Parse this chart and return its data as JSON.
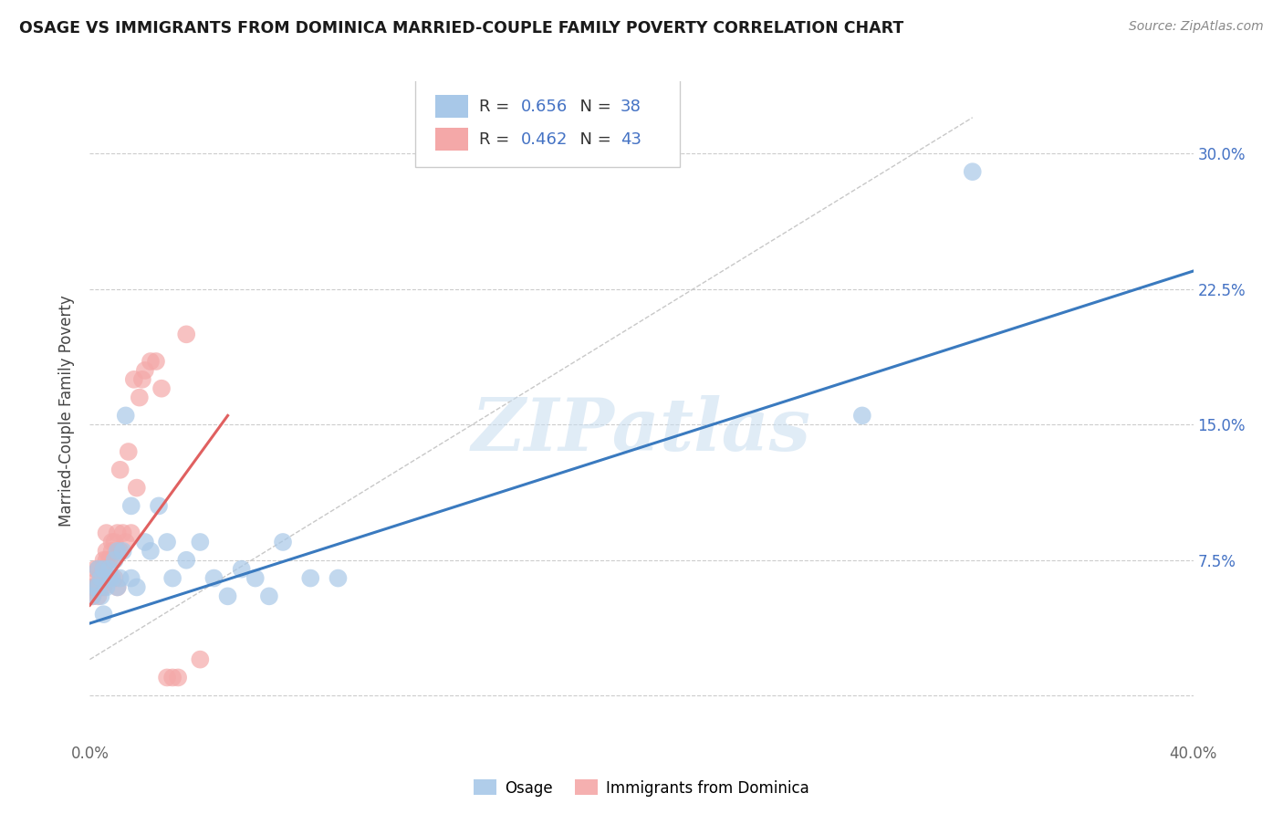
{
  "title": "OSAGE VS IMMIGRANTS FROM DOMINICA MARRIED-COUPLE FAMILY POVERTY CORRELATION CHART",
  "source": "Source: ZipAtlas.com",
  "ylabel": "Married-Couple Family Poverty",
  "xlim": [
    0.0,
    0.4
  ],
  "ylim": [
    -0.025,
    0.34
  ],
  "ytick_positions": [
    0.0,
    0.075,
    0.15,
    0.225,
    0.3
  ],
  "yticklabels_right": [
    "",
    "7.5%",
    "15.0%",
    "22.5%",
    "30.0%"
  ],
  "blue_scatter_color": "#a8c8e8",
  "pink_scatter_color": "#f4a8a8",
  "blue_line_color": "#3a7abf",
  "pink_line_color": "#e06060",
  "diagonal_color": "#c8c8c8",
  "watermark": "ZIPatlas",
  "legend_blue_R": "0.656",
  "legend_blue_N": "38",
  "legend_pink_R": "0.462",
  "legend_pink_N": "43",
  "legend_label_blue": "Osage",
  "legend_label_pink": "Immigrants from Dominica",
  "blue_line_x0": 0.0,
  "blue_line_y0": 0.04,
  "blue_line_x1": 0.4,
  "blue_line_y1": 0.235,
  "pink_line_x0": 0.0,
  "pink_line_y0": 0.05,
  "pink_line_x1": 0.05,
  "pink_line_y1": 0.155,
  "osage_x": [
    0.001,
    0.002,
    0.003,
    0.003,
    0.004,
    0.004,
    0.005,
    0.005,
    0.006,
    0.007,
    0.007,
    0.008,
    0.009,
    0.01,
    0.01,
    0.011,
    0.012,
    0.013,
    0.015,
    0.015,
    0.017,
    0.02,
    0.022,
    0.025,
    0.028,
    0.03,
    0.035,
    0.04,
    0.045,
    0.05,
    0.055,
    0.06,
    0.065,
    0.07,
    0.08,
    0.09,
    0.28,
    0.32
  ],
  "osage_y": [
    0.055,
    0.06,
    0.06,
    0.07,
    0.055,
    0.065,
    0.07,
    0.045,
    0.06,
    0.065,
    0.07,
    0.065,
    0.075,
    0.06,
    0.08,
    0.065,
    0.08,
    0.155,
    0.105,
    0.065,
    0.06,
    0.085,
    0.08,
    0.105,
    0.085,
    0.065,
    0.075,
    0.085,
    0.065,
    0.055,
    0.07,
    0.065,
    0.055,
    0.085,
    0.065,
    0.065,
    0.155,
    0.29
  ],
  "dominica_x": [
    0.001,
    0.001,
    0.002,
    0.002,
    0.003,
    0.003,
    0.003,
    0.004,
    0.004,
    0.005,
    0.005,
    0.005,
    0.006,
    0.006,
    0.006,
    0.007,
    0.007,
    0.008,
    0.008,
    0.008,
    0.009,
    0.009,
    0.01,
    0.01,
    0.011,
    0.011,
    0.012,
    0.013,
    0.014,
    0.015,
    0.016,
    0.017,
    0.018,
    0.019,
    0.02,
    0.022,
    0.024,
    0.026,
    0.028,
    0.03,
    0.032,
    0.035,
    0.04
  ],
  "dominica_y": [
    0.06,
    0.055,
    0.07,
    0.06,
    0.065,
    0.07,
    0.055,
    0.065,
    0.06,
    0.075,
    0.07,
    0.06,
    0.075,
    0.08,
    0.09,
    0.065,
    0.075,
    0.08,
    0.085,
    0.075,
    0.065,
    0.085,
    0.09,
    0.06,
    0.125,
    0.08,
    0.09,
    0.085,
    0.135,
    0.09,
    0.175,
    0.115,
    0.165,
    0.175,
    0.18,
    0.185,
    0.185,
    0.17,
    0.01,
    0.01,
    0.01,
    0.2,
    0.02
  ]
}
